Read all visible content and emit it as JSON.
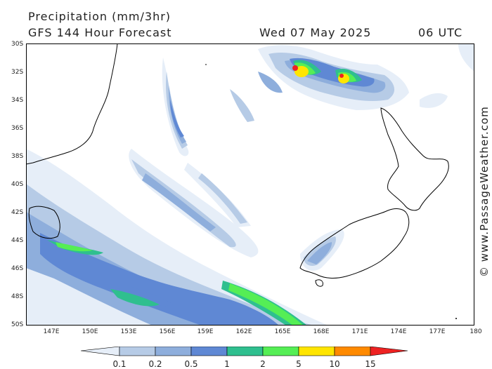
{
  "header": {
    "title": "Precipitation (mm/3hr)",
    "subtitle": "GFS 144 Hour Forecast",
    "date": "Wed 07 May 2025",
    "time": "06 UTC"
  },
  "axes": {
    "lat_labels": [
      "30S",
      "32S",
      "34S",
      "36S",
      "38S",
      "40S",
      "42S",
      "44S",
      "46S",
      "48S",
      "50S"
    ],
    "lon_labels": [
      "147E",
      "150E",
      "153E",
      "156E",
      "159E",
      "162E",
      "165E",
      "168E",
      "171E",
      "174E",
      "177E",
      "180"
    ]
  },
  "watermark": "© www.PassageWeather.com",
  "legend": {
    "labels": [
      "0.1",
      "0.2",
      "0.5",
      "1",
      "2",
      "5",
      "10",
      "15"
    ],
    "colors": [
      "#e6eef8",
      "#b6cbe6",
      "#8eaedc",
      "#5f88d4",
      "#2fbf8f",
      "#55ee55",
      "#ffe500",
      "#ff8a00",
      "#ee2222"
    ]
  },
  "map_style": {
    "land_color": "#ffffff",
    "coast_color": "#000000",
    "frame_color": "#000000"
  }
}
